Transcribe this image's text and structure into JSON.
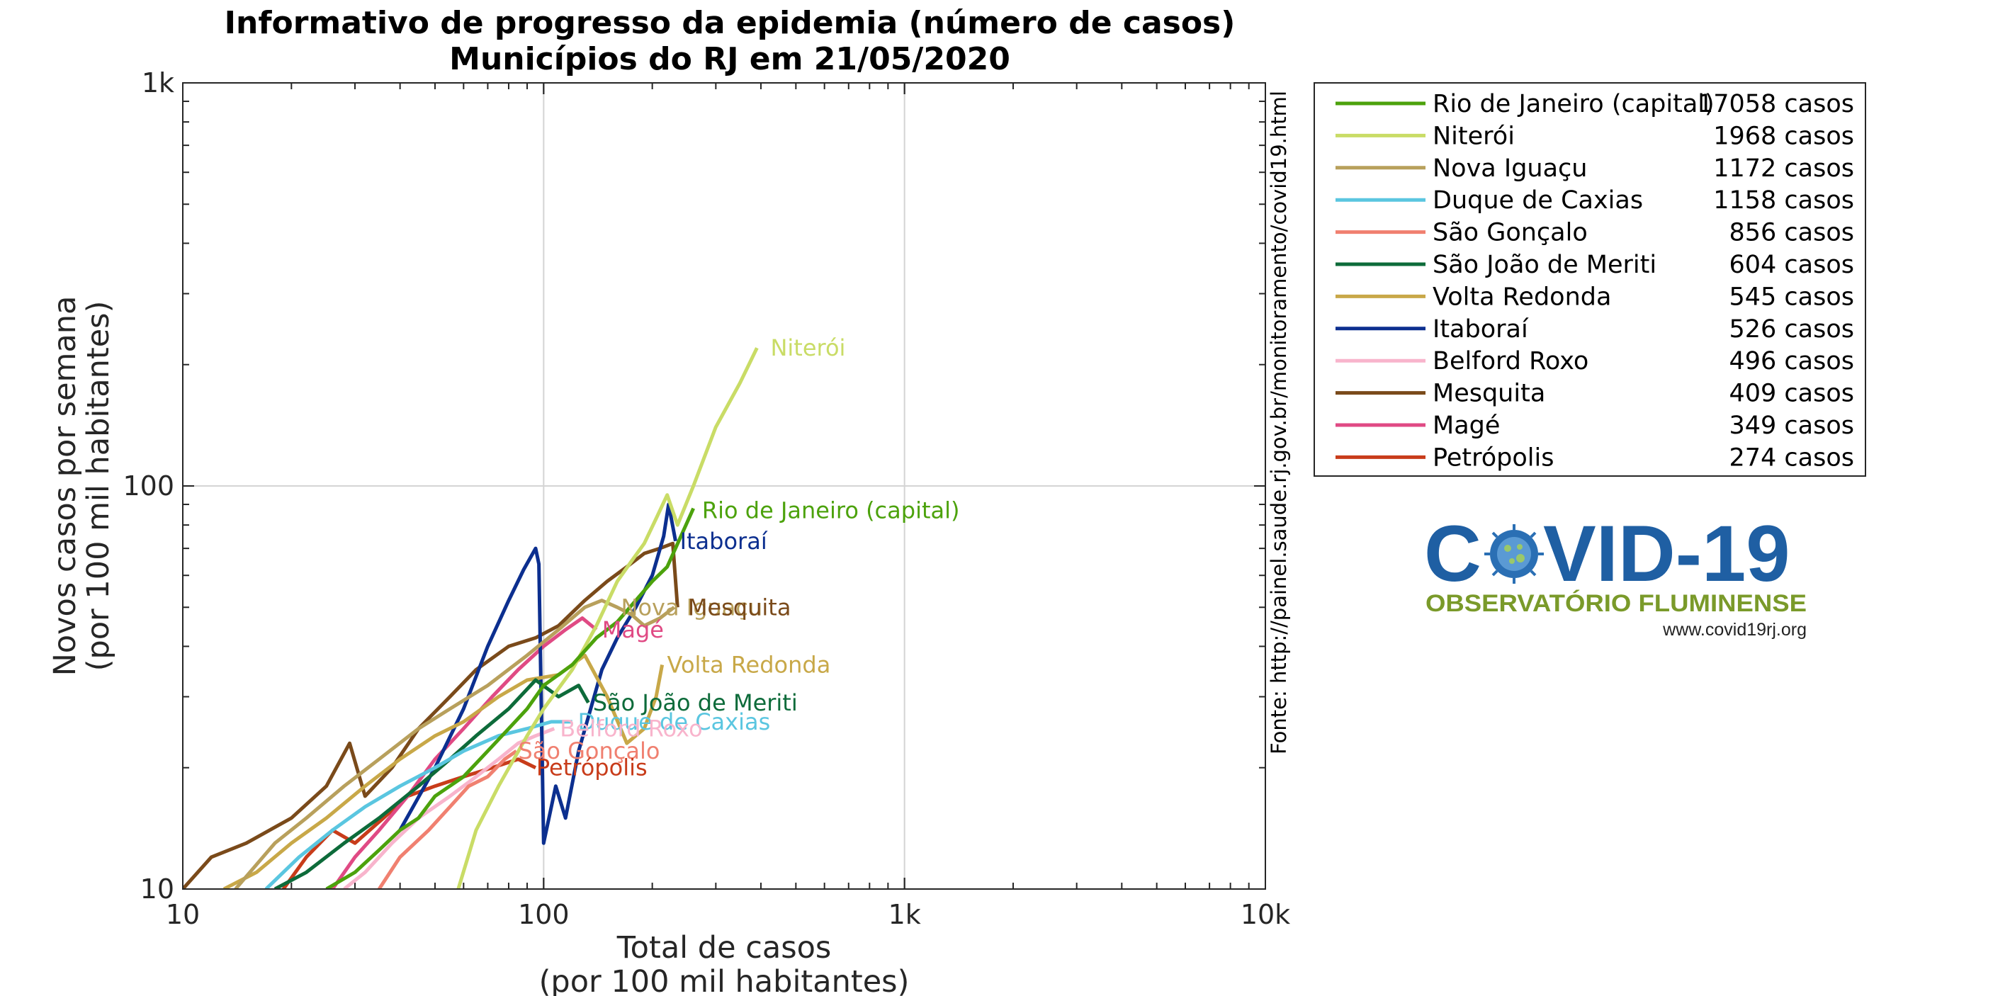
{
  "chart_data": {
    "type": "line",
    "title": [
      "Informativo de progresso da epidemia (número de casos)",
      "Municípios do RJ em 21/05/2020"
    ],
    "xlabel": [
      "Total de casos",
      "(por 100 mil habitantes)"
    ],
    "ylabel": [
      "Novos casos por semana",
      "(por 100 mil habitantes)"
    ],
    "x_scale": "log",
    "y_scale": "log",
    "xlim": [
      10,
      10000
    ],
    "ylim": [
      10,
      1000
    ],
    "x_ticks": [
      {
        "value": 10,
        "label": "10"
      },
      {
        "value": 100,
        "label": "100"
      },
      {
        "value": 1000,
        "label": "1k"
      },
      {
        "value": 10000,
        "label": "10k"
      }
    ],
    "y_ticks": [
      {
        "value": 10,
        "label": "10"
      },
      {
        "value": 100,
        "label": "100"
      },
      {
        "value": 1000,
        "label": "1k"
      }
    ],
    "grid": "major only",
    "legend_position": "outside-right",
    "source": "Fonte: http://painel.saude.rj.gov.br/monitoramento/covid19.html",
    "series": [
      {
        "name": "Rio de Janeiro (capital)",
        "count": "17058 casos",
        "color": "#4ca20c",
        "label_at": [
          265,
          87
        ],
        "points": [
          [
            25,
            10
          ],
          [
            30,
            11
          ],
          [
            35,
            12.5
          ],
          [
            40,
            14
          ],
          [
            45,
            15
          ],
          [
            50,
            17
          ],
          [
            60,
            19
          ],
          [
            70,
            22
          ],
          [
            80,
            25
          ],
          [
            90,
            28
          ],
          [
            100,
            32
          ],
          [
            120,
            36
          ],
          [
            140,
            42
          ],
          [
            160,
            46
          ],
          [
            180,
            52
          ],
          [
            200,
            58
          ],
          [
            220,
            63
          ],
          [
            240,
            75
          ],
          [
            260,
            88
          ]
        ]
      },
      {
        "name": "Niterói",
        "count": "1968 casos",
        "color": "#c9dc66",
        "label_at": [
          410,
          220
        ],
        "points": [
          [
            58,
            10
          ],
          [
            65,
            14
          ],
          [
            75,
            18
          ],
          [
            90,
            24
          ],
          [
            100,
            28
          ],
          [
            120,
            35
          ],
          [
            140,
            45
          ],
          [
            160,
            58
          ],
          [
            175,
            65
          ],
          [
            190,
            72
          ],
          [
            205,
            83
          ],
          [
            220,
            95
          ],
          [
            235,
            80
          ],
          [
            260,
            100
          ],
          [
            300,
            140
          ],
          [
            350,
            180
          ],
          [
            390,
            220
          ]
        ]
      },
      {
        "name": "Nova Iguaçu",
        "count": "1172 casos",
        "color": "#b8a05c",
        "label_at": [
          158,
          50
        ],
        "points": [
          [
            14,
            10
          ],
          [
            18,
            13
          ],
          [
            22,
            15
          ],
          [
            28,
            18
          ],
          [
            35,
            21
          ],
          [
            45,
            25
          ],
          [
            55,
            28
          ],
          [
            70,
            32
          ],
          [
            90,
            38
          ],
          [
            110,
            44
          ],
          [
            130,
            50
          ],
          [
            145,
            52
          ],
          [
            160,
            50
          ],
          [
            175,
            48
          ],
          [
            190,
            45
          ],
          [
            210,
            47
          ],
          [
            230,
            50
          ]
        ]
      },
      {
        "name": "Duque de Caxias",
        "count": "1158 casos",
        "color": "#5ac6e0",
        "label_at": [
          120,
          26
        ],
        "points": [
          [
            17,
            10
          ],
          [
            21,
            12
          ],
          [
            26,
            14
          ],
          [
            32,
            16
          ],
          [
            40,
            18
          ],
          [
            50,
            20
          ],
          [
            60,
            22
          ],
          [
            75,
            24
          ],
          [
            90,
            25
          ],
          [
            105,
            26
          ],
          [
            120,
            26
          ]
        ]
      },
      {
        "name": "São Gonçalo",
        "count": "856 casos",
        "color": "#f08070",
        "label_at": [
          82,
          22
        ],
        "points": [
          [
            35,
            10
          ],
          [
            40,
            12
          ],
          [
            48,
            14
          ],
          [
            55,
            16
          ],
          [
            62,
            18
          ],
          [
            70,
            19
          ],
          [
            78,
            21
          ],
          [
            84,
            22
          ]
        ]
      },
      {
        "name": "São João de Meriti",
        "count": "604 casos",
        "color": "#0d6b3a",
        "label_at": [
          132,
          29
        ],
        "points": [
          [
            18,
            10
          ],
          [
            22,
            11
          ],
          [
            28,
            13
          ],
          [
            35,
            15
          ],
          [
            45,
            18
          ],
          [
            55,
            21
          ],
          [
            65,
            24
          ],
          [
            80,
            28
          ],
          [
            95,
            33
          ],
          [
            110,
            30
          ],
          [
            125,
            32
          ],
          [
            133,
            29
          ]
        ]
      },
      {
        "name": "Volta Redonda",
        "count": "545 casos",
        "color": "#c8a848",
        "label_at": [
          212,
          36
        ],
        "points": [
          [
            13,
            10
          ],
          [
            16,
            11
          ],
          [
            20,
            13
          ],
          [
            25,
            15
          ],
          [
            32,
            18
          ],
          [
            40,
            21
          ],
          [
            50,
            24
          ],
          [
            60,
            26
          ],
          [
            75,
            30
          ],
          [
            90,
            33
          ],
          [
            110,
            34
          ],
          [
            130,
            38
          ],
          [
            150,
            30
          ],
          [
            170,
            23
          ],
          [
            190,
            25
          ],
          [
            205,
            30
          ],
          [
            213,
            36
          ]
        ]
      },
      {
        "name": "Itaboraí",
        "count": "526 casos",
        "color": "#0c2f8f",
        "label_at": [
          230,
          73
        ],
        "points": [
          [
            40,
            14
          ],
          [
            50,
            20
          ],
          [
            60,
            28
          ],
          [
            70,
            40
          ],
          [
            80,
            52
          ],
          [
            88,
            62
          ],
          [
            95,
            70
          ],
          [
            97,
            64
          ],
          [
            100,
            13
          ],
          [
            108,
            18
          ],
          [
            115,
            15
          ],
          [
            125,
            22
          ],
          [
            135,
            28
          ],
          [
            145,
            35
          ],
          [
            160,
            42
          ],
          [
            180,
            50
          ],
          [
            200,
            60
          ],
          [
            215,
            75
          ],
          [
            222,
            90
          ],
          [
            232,
            73
          ]
        ]
      },
      {
        "name": "Belford Roxo",
        "count": "496 casos",
        "color": "#f8b4cc",
        "label_at": [
          107,
          25
        ],
        "points": [
          [
            28,
            10
          ],
          [
            32,
            11
          ],
          [
            38,
            13
          ],
          [
            45,
            15
          ],
          [
            55,
            17
          ],
          [
            65,
            19
          ],
          [
            75,
            21
          ],
          [
            85,
            23
          ],
          [
            95,
            24
          ],
          [
            107,
            25
          ]
        ]
      },
      {
        "name": "Mesquita",
        "count": "409 casos",
        "color": "#7a4a1a",
        "label_at": [
          242,
          50
        ],
        "points": [
          [
            10,
            10
          ],
          [
            12,
            12
          ],
          [
            15,
            13
          ],
          [
            20,
            15
          ],
          [
            25,
            18
          ],
          [
            29,
            23
          ],
          [
            32,
            17
          ],
          [
            38,
            20
          ],
          [
            45,
            25
          ],
          [
            55,
            30
          ],
          [
            65,
            35
          ],
          [
            80,
            40
          ],
          [
            95,
            42
          ],
          [
            110,
            45
          ],
          [
            130,
            52
          ],
          [
            150,
            58
          ],
          [
            170,
            63
          ],
          [
            190,
            68
          ],
          [
            210,
            70
          ],
          [
            228,
            72
          ],
          [
            235,
            50
          ]
        ]
      },
      {
        "name": "Magé",
        "count": "349 casos",
        "color": "#e04a84",
        "label_at": [
          140,
          44
        ],
        "points": [
          [
            26,
            10
          ],
          [
            30,
            12
          ],
          [
            35,
            14
          ],
          [
            42,
            17
          ],
          [
            50,
            21
          ],
          [
            60,
            25
          ],
          [
            72,
            30
          ],
          [
            85,
            35
          ],
          [
            100,
            40
          ],
          [
            115,
            44
          ],
          [
            128,
            47
          ],
          [
            140,
            44
          ]
        ]
      },
      {
        "name": "Petrópolis",
        "count": "274 casos",
        "color": "#c83c1a",
        "label_at": [
          92,
          20
        ],
        "points": [
          [
            19,
            10
          ],
          [
            22,
            12
          ],
          [
            26,
            14
          ],
          [
            30,
            13
          ],
          [
            36,
            15
          ],
          [
            42,
            17
          ],
          [
            50,
            18
          ],
          [
            60,
            19
          ],
          [
            72,
            20
          ],
          [
            85,
            21
          ],
          [
            95,
            20
          ]
        ]
      }
    ]
  },
  "logo": {
    "word_left": "C",
    "word_right": "VID-19",
    "subtitle": "OBSERVATÓRIO FLUMINENSE",
    "url": "www.covid19rj.org",
    "primary_color": "#1f5fa3",
    "secondary_color": "#7a9a2a"
  }
}
